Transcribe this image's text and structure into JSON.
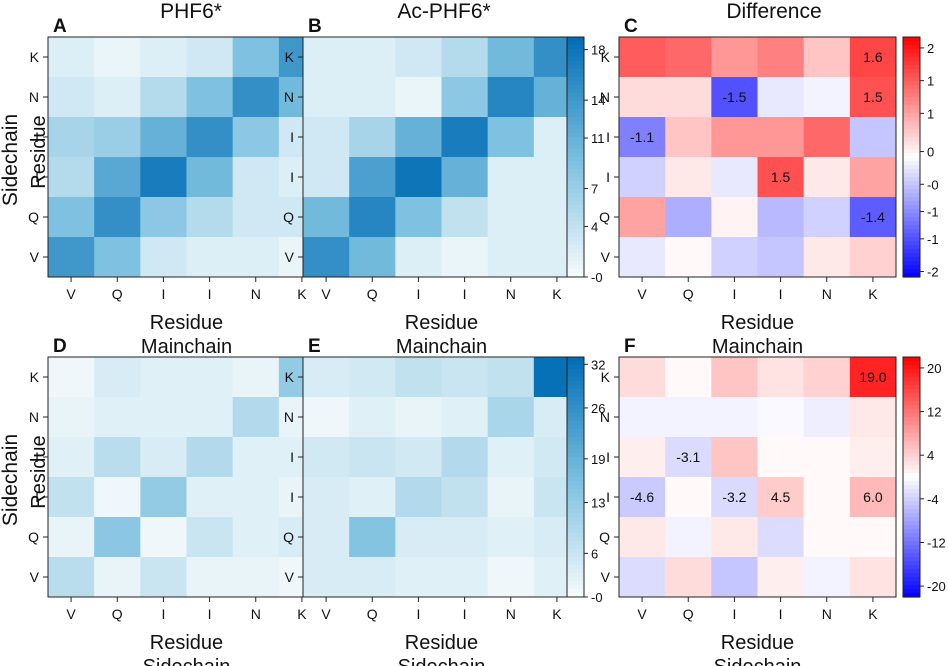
{
  "column_titles": [
    "PHF6*",
    "Ac-PHF6*",
    "Difference"
  ],
  "row_titles": [
    "Sidechain",
    "Sidechain"
  ],
  "chart_data": [
    {
      "panel": "A",
      "type": "heatmap",
      "colormap": "blues",
      "x_ticks": [
        "V",
        "Q",
        "I",
        "I",
        "N",
        "K"
      ],
      "y_ticks": [
        "K",
        "N",
        "I",
        "I",
        "Q",
        "V"
      ],
      "xlabel": "Residue",
      "xlabel2": "Mainchain",
      "ylabel": "Residue",
      "vmin": 0,
      "vmax": 19,
      "values": [
        [
          2,
          1,
          2,
          3,
          9,
          14
        ],
        [
          3,
          2,
          5,
          9,
          15,
          10
        ],
        [
          6,
          7,
          11,
          15,
          8,
          3
        ],
        [
          5,
          12,
          17,
          10,
          3,
          2
        ],
        [
          9,
          15,
          8,
          5,
          3,
          3
        ],
        [
          14,
          9,
          3,
          2,
          2,
          1
        ]
      ],
      "colorbar": null
    },
    {
      "panel": "B",
      "type": "heatmap",
      "colormap": "blues",
      "x_ticks": [
        "V",
        "Q",
        "I",
        "I",
        "N",
        "K"
      ],
      "y_ticks": [
        "K",
        "N",
        "I",
        "I",
        "Q",
        "V"
      ],
      "xlabel": "Residue",
      "xlabel2": "Mainchain",
      "ylabel": "",
      "vmin": 0,
      "vmax": 19,
      "values": [
        [
          2,
          2,
          3,
          5,
          10,
          15
        ],
        [
          2,
          2,
          1,
          8,
          16,
          11
        ],
        [
          3,
          6,
          11,
          17,
          9,
          2
        ],
        [
          3,
          13,
          18,
          11,
          2,
          2
        ],
        [
          10,
          16,
          9,
          4,
          2,
          2
        ],
        [
          15,
          10,
          2,
          1,
          2,
          2
        ]
      ],
      "colorbar": {
        "ticks": [
          "18",
          "14",
          "11",
          "7",
          "4",
          "-0"
        ],
        "tick_values": [
          18,
          14,
          11,
          7,
          4,
          0
        ]
      }
    },
    {
      "panel": "C",
      "type": "heatmap",
      "colormap": "bwr",
      "x_ticks": [
        "V",
        "Q",
        "I",
        "I",
        "N",
        "K"
      ],
      "y_ticks": [
        "K",
        "N",
        "I",
        "I",
        "Q",
        "V"
      ],
      "xlabel": "Residue",
      "xlabel2": "Mainchain",
      "ylabel": "",
      "vmin": -2.2,
      "vmax": 2.2,
      "values": [
        [
          1.4,
          1.3,
          0.9,
          1.1,
          0.5,
          1.6
        ],
        [
          0.3,
          0.3,
          -1.5,
          -0.2,
          -0.1,
          1.5
        ],
        [
          -1.1,
          0.5,
          0.9,
          0.9,
          1.3,
          -0.5
        ],
        [
          -0.4,
          0.2,
          -0.2,
          1.5,
          0.2,
          0.8
        ],
        [
          0.8,
          -0.7,
          0.1,
          -0.6,
          -0.4,
          -1.4
        ],
        [
          -0.2,
          0.05,
          -0.4,
          -0.5,
          0.2,
          0.4
        ]
      ],
      "annotations": [
        {
          "row": 0,
          "col": 5,
          "text": "1.6"
        },
        {
          "row": 1,
          "col": 2,
          "text": "-1.5"
        },
        {
          "row": 1,
          "col": 5,
          "text": "1.5"
        },
        {
          "row": 2,
          "col": 0,
          "text": "-1.1"
        },
        {
          "row": 3,
          "col": 3,
          "text": "1.5"
        },
        {
          "row": 4,
          "col": 5,
          "text": "-1.4"
        }
      ],
      "colorbar": {
        "ticks": [
          "2",
          "1",
          "1",
          "0",
          "-0",
          "-1",
          "-1",
          "-2"
        ],
        "tick_values": [
          2,
          1.4,
          0.8,
          0.1,
          -0.5,
          -1.0,
          -1.5,
          -2.1
        ]
      }
    },
    {
      "panel": "D",
      "type": "heatmap",
      "colormap": "blues",
      "x_ticks": [
        "V",
        "Q",
        "I",
        "I",
        "N",
        "K"
      ],
      "y_ticks": [
        "K",
        "N",
        "I",
        "I",
        "Q",
        "V"
      ],
      "xlabel": "Residue",
      "xlabel2": "Sidechain",
      "ylabel": "Residue",
      "vmin": 0,
      "vmax": 33,
      "values": [
        [
          1,
          4,
          3,
          3,
          2,
          13
        ],
        [
          2,
          3,
          3,
          3,
          9,
          2
        ],
        [
          3,
          8,
          4,
          9,
          3,
          3
        ],
        [
          7,
          1,
          13,
          3,
          3,
          2
        ],
        [
          2,
          14,
          1,
          6,
          3,
          4
        ],
        [
          8,
          2,
          6,
          2,
          2,
          1
        ]
      ],
      "colorbar": null
    },
    {
      "panel": "E",
      "type": "heatmap",
      "colormap": "blues",
      "x_ticks": [
        "V",
        "Q",
        "I",
        "I",
        "N",
        "K"
      ],
      "y_ticks": [
        "K",
        "N",
        "I",
        "I",
        "Q",
        "V"
      ],
      "xlabel": "Residue",
      "xlabel2": "Sidechain",
      "ylabel": "",
      "vmin": 0,
      "vmax": 33,
      "values": [
        [
          4,
          5,
          7,
          6,
          7,
          32
        ],
        [
          1,
          3,
          2,
          3,
          10,
          4
        ],
        [
          5,
          6,
          5,
          9,
          3,
          5
        ],
        [
          4,
          3,
          9,
          7,
          2,
          6
        ],
        [
          4,
          15,
          4,
          4,
          3,
          4
        ],
        [
          4,
          4,
          3,
          3,
          1,
          3
        ]
      ],
      "colorbar": {
        "ticks": [
          "32",
          "26",
          "19",
          "13",
          "6",
          "-0"
        ],
        "tick_values": [
          32,
          26,
          19,
          13,
          6,
          0
        ]
      }
    },
    {
      "panel": "F",
      "type": "heatmap",
      "colormap": "bwr",
      "x_ticks": [
        "V",
        "Q",
        "I",
        "I",
        "N",
        "K"
      ],
      "y_ticks": [
        "K",
        "N",
        "I",
        "I",
        "Q",
        "V"
      ],
      "xlabel": "Residue",
      "xlabel2": "Sidechain",
      "ylabel": "",
      "vmin": -22,
      "vmax": 22,
      "values": [
        [
          3,
          0.5,
          5,
          2.5,
          4,
          19.0
        ],
        [
          -1,
          -1,
          -1,
          -0.5,
          -1.5,
          2
        ],
        [
          1.5,
          -3.1,
          5,
          0.5,
          0.5,
          1.5
        ],
        [
          -4.6,
          0.5,
          -3.2,
          4.5,
          0.5,
          6.0
        ],
        [
          2,
          -1,
          2,
          -3,
          0.5,
          0.5
        ],
        [
          -3,
          3,
          -5,
          1.5,
          -1,
          2.5
        ]
      ],
      "annotations": [
        {
          "row": 0,
          "col": 5,
          "text": "19.0"
        },
        {
          "row": 2,
          "col": 1,
          "text": "-3.1"
        },
        {
          "row": 3,
          "col": 0,
          "text": "-4.6"
        },
        {
          "row": 3,
          "col": 2,
          "text": "-3.2"
        },
        {
          "row": 3,
          "col": 3,
          "text": "4.5"
        },
        {
          "row": 3,
          "col": 5,
          "text": "6.0"
        }
      ],
      "colorbar": {
        "ticks": [
          "20",
          "12",
          "4",
          "-4",
          "-12",
          "-20"
        ],
        "tick_values": [
          20,
          12,
          4,
          -4,
          -12,
          -20
        ]
      }
    }
  ]
}
